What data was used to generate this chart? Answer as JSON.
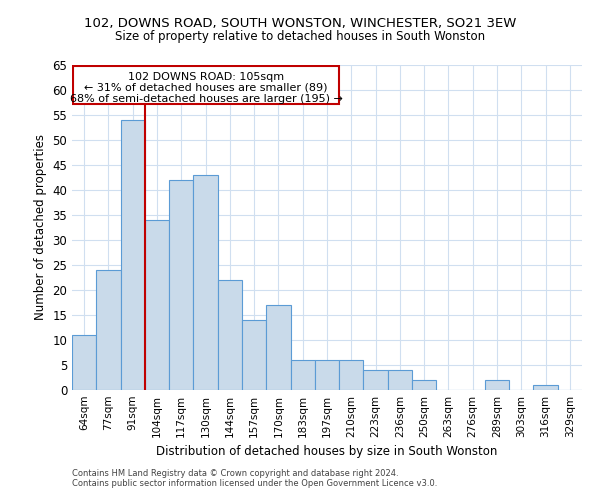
{
  "title1": "102, DOWNS ROAD, SOUTH WONSTON, WINCHESTER, SO21 3EW",
  "title2": "Size of property relative to detached houses in South Wonston",
  "xlabel": "Distribution of detached houses by size in South Wonston",
  "ylabel": "Number of detached properties",
  "categories": [
    "64sqm",
    "77sqm",
    "91sqm",
    "104sqm",
    "117sqm",
    "130sqm",
    "144sqm",
    "157sqm",
    "170sqm",
    "183sqm",
    "197sqm",
    "210sqm",
    "223sqm",
    "236sqm",
    "250sqm",
    "263sqm",
    "276sqm",
    "289sqm",
    "303sqm",
    "316sqm",
    "329sqm"
  ],
  "values": [
    11,
    24,
    54,
    34,
    42,
    43,
    22,
    14,
    17,
    6,
    6,
    6,
    4,
    4,
    2,
    0,
    0,
    2,
    0,
    1,
    0
  ],
  "bar_color": "#c9daea",
  "bar_edge_color": "#5b9bd5",
  "vline_position": 2.5,
  "vline_color": "#c00000",
  "annotation_title": "102 DOWNS ROAD: 105sqm",
  "annotation_line1": "← 31% of detached houses are smaller (89)",
  "annotation_line2": "68% of semi-detached houses are larger (195) →",
  "annotation_box_color": "#c00000",
  "ylim": [
    0,
    65
  ],
  "yticks": [
    0,
    5,
    10,
    15,
    20,
    25,
    30,
    35,
    40,
    45,
    50,
    55,
    60,
    65
  ],
  "footer1": "Contains HM Land Registry data © Crown copyright and database right 2024.",
  "footer2": "Contains public sector information licensed under the Open Government Licence v3.0.",
  "grid_color": "#d0dff0",
  "background_color": "#ffffff"
}
